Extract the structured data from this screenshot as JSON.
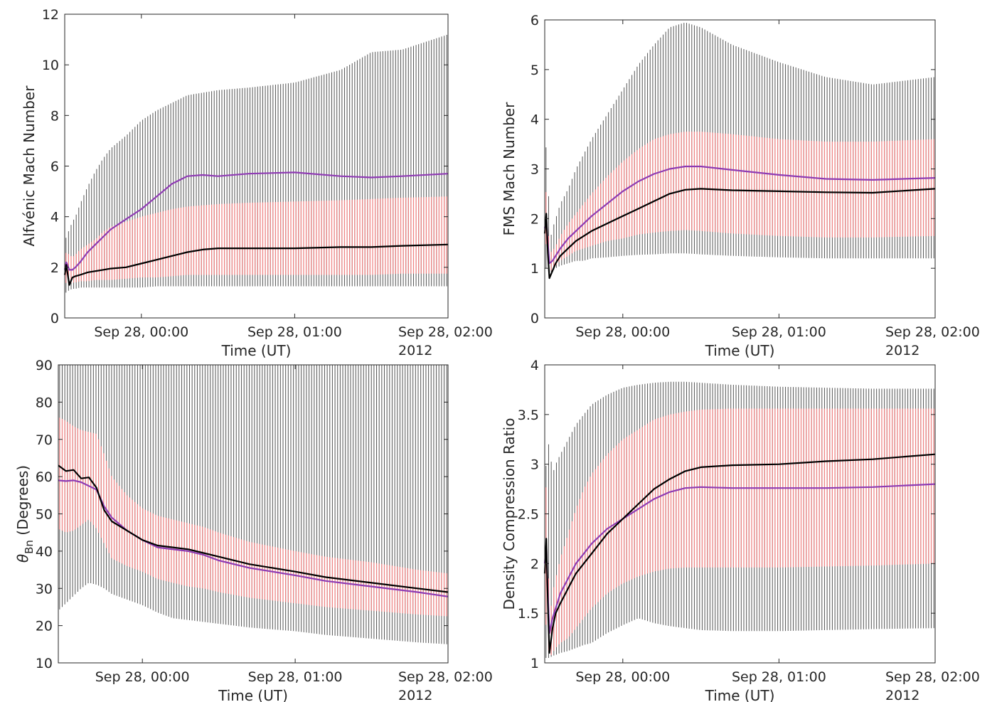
{
  "chart_data": [
    {
      "type": "line",
      "ylabel": "Alfvénic Mach Number",
      "ylabel_sub": "",
      "xlabel": "Time (UT)",
      "ylim": [
        0,
        12
      ],
      "yticks": [
        "0",
        "2",
        "4",
        "6",
        "8",
        "10",
        "12"
      ],
      "xlim": [
        -0.5,
        2.0
      ],
      "xticks": [
        "Sep 28, 00:00",
        "Sep 28, 01:00",
        "Sep 28, 02:00"
      ],
      "x_secondary_label": "2012",
      "x_hours": [
        -0.5,
        -0.49,
        -0.47,
        -0.45,
        -0.43,
        -0.4,
        -0.35,
        -0.3,
        -0.25,
        -0.2,
        -0.1,
        0.0,
        0.1,
        0.2,
        0.3,
        0.4,
        0.5,
        0.7,
        1.0,
        1.3,
        1.5,
        1.7,
        2.0
      ],
      "series": [
        {
          "role": "median",
          "color": "#000000",
          "values": [
            1.7,
            2.1,
            1.3,
            1.6,
            1.65,
            1.7,
            1.8,
            1.85,
            1.9,
            1.95,
            2.0,
            2.15,
            2.3,
            2.45,
            2.6,
            2.7,
            2.75,
            2.75,
            2.75,
            2.8,
            2.8,
            2.85,
            2.9
          ]
        },
        {
          "role": "mean",
          "color": "#8e3bb3",
          "values": [
            1.9,
            2.2,
            1.9,
            1.9,
            2.0,
            2.2,
            2.6,
            2.9,
            3.2,
            3.5,
            3.9,
            4.3,
            4.8,
            5.3,
            5.6,
            5.65,
            5.6,
            5.7,
            5.75,
            5.6,
            5.55,
            5.6,
            5.7
          ]
        },
        {
          "role": "error-outer",
          "color": "#555555",
          "low": [
            1.0,
            1.0,
            1.1,
            1.15,
            1.15,
            1.2,
            1.2,
            1.2,
            1.2,
            1.2,
            1.2,
            1.2,
            1.25,
            1.25,
            1.25,
            1.25,
            1.25,
            1.25,
            1.25,
            1.25,
            1.25,
            1.25,
            1.25
          ],
          "high": [
            3.0,
            3.2,
            3.5,
            3.8,
            4.0,
            4.5,
            5.2,
            5.8,
            6.3,
            6.7,
            7.2,
            7.8,
            8.2,
            8.5,
            8.8,
            8.9,
            9.0,
            9.1,
            9.3,
            9.8,
            10.5,
            10.6,
            11.2
          ]
        },
        {
          "role": "error-inner",
          "color": "#f08080",
          "low": [
            1.3,
            1.4,
            1.35,
            1.4,
            1.4,
            1.45,
            1.45,
            1.5,
            1.5,
            1.5,
            1.55,
            1.6,
            1.6,
            1.65,
            1.7,
            1.7,
            1.7,
            1.7,
            1.7,
            1.7,
            1.7,
            1.75,
            1.75
          ],
          "high": [
            2.4,
            2.6,
            2.5,
            2.4,
            2.5,
            2.7,
            2.9,
            3.1,
            3.4,
            3.6,
            3.8,
            4.0,
            4.15,
            4.3,
            4.4,
            4.45,
            4.5,
            4.55,
            4.6,
            4.65,
            4.7,
            4.75,
            4.8
          ]
        }
      ]
    },
    {
      "type": "line",
      "ylabel": "FMS Mach Number",
      "ylabel_sub": "",
      "xlabel": "Time (UT)",
      "ylim": [
        0,
        6
      ],
      "yticks": [
        "0",
        "1",
        "2",
        "3",
        "4",
        "5",
        "6"
      ],
      "xlim": [
        -0.5,
        2.0
      ],
      "xticks": [
        "Sep 28, 00:00",
        "Sep 28, 01:00",
        "Sep 28, 02:00"
      ],
      "x_secondary_label": "2012",
      "x_hours": [
        -0.5,
        -0.49,
        -0.48,
        -0.47,
        -0.45,
        -0.43,
        -0.4,
        -0.35,
        -0.3,
        -0.25,
        -0.2,
        -0.1,
        0.0,
        0.1,
        0.2,
        0.3,
        0.4,
        0.5,
        0.7,
        1.0,
        1.3,
        1.6,
        2.0
      ],
      "series": [
        {
          "role": "median",
          "color": "#000000",
          "values": [
            1.7,
            2.1,
            1.3,
            0.8,
            0.95,
            1.1,
            1.25,
            1.4,
            1.55,
            1.65,
            1.75,
            1.9,
            2.05,
            2.2,
            2.35,
            2.5,
            2.58,
            2.6,
            2.57,
            2.55,
            2.53,
            2.52,
            2.6
          ]
        },
        {
          "role": "mean",
          "color": "#8e3bb3",
          "values": [
            1.8,
            2.0,
            1.5,
            1.1,
            1.15,
            1.25,
            1.4,
            1.6,
            1.75,
            1.9,
            2.05,
            2.3,
            2.55,
            2.75,
            2.9,
            3.0,
            3.05,
            3.05,
            2.98,
            2.88,
            2.8,
            2.78,
            2.82
          ]
        },
        {
          "role": "error-outer",
          "color": "#555555",
          "low": [
            1.0,
            1.0,
            0.95,
            0.9,
            0.95,
            1.0,
            1.05,
            1.1,
            1.15,
            1.15,
            1.2,
            1.22,
            1.25,
            1.27,
            1.28,
            1.3,
            1.3,
            1.28,
            1.25,
            1.22,
            1.2,
            1.2,
            1.2
          ],
          "high": [
            2.6,
            3.6,
            3.4,
            1.5,
            1.8,
            2.0,
            2.3,
            2.6,
            3.0,
            3.3,
            3.6,
            4.1,
            4.6,
            5.1,
            5.5,
            5.85,
            5.95,
            5.85,
            5.5,
            5.15,
            4.85,
            4.7,
            4.85
          ]
        },
        {
          "role": "error-inner",
          "color": "#f08080",
          "low": [
            1.4,
            1.5,
            1.2,
            0.9,
            1.0,
            1.05,
            1.15,
            1.25,
            1.35,
            1.4,
            1.45,
            1.55,
            1.6,
            1.68,
            1.72,
            1.75,
            1.77,
            1.75,
            1.7,
            1.65,
            1.62,
            1.62,
            1.65
          ],
          "high": [
            2.2,
            2.6,
            2.0,
            1.3,
            1.35,
            1.45,
            1.65,
            1.9,
            2.1,
            2.3,
            2.5,
            2.85,
            3.15,
            3.4,
            3.6,
            3.7,
            3.75,
            3.75,
            3.7,
            3.6,
            3.55,
            3.55,
            3.6
          ]
        }
      ]
    },
    {
      "type": "line",
      "ylabel": "θ",
      "ylabel_sub": "Bn",
      "ylabel_suffix": " (Degrees)",
      "xlabel": "Time (UT)",
      "ylim": [
        10,
        90
      ],
      "yticks": [
        "10",
        "20",
        "30",
        "40",
        "50",
        "60",
        "70",
        "80",
        "90"
      ],
      "xlim": [
        -0.55,
        2.0
      ],
      "xticks": [
        "Sep 28, 00:00",
        "Sep 28, 01:00",
        "Sep 28, 02:00"
      ],
      "x_secondary_label": "2012",
      "x_hours": [
        -0.55,
        -0.5,
        -0.45,
        -0.4,
        -0.35,
        -0.3,
        -0.25,
        -0.2,
        -0.1,
        0.0,
        0.1,
        0.2,
        0.3,
        0.4,
        0.5,
        0.7,
        1.0,
        1.2,
        1.5,
        1.8,
        2.0
      ],
      "series": [
        {
          "role": "median",
          "color": "#000000",
          "values": [
            63.0,
            61.5,
            61.8,
            59.5,
            59.8,
            57.0,
            51.0,
            48.0,
            45.5,
            43.0,
            41.5,
            41.0,
            40.5,
            39.5,
            38.5,
            36.5,
            34.5,
            33.0,
            31.5,
            30.0,
            29.0
          ]
        },
        {
          "role": "mean",
          "color": "#8e3bb3",
          "values": [
            59.0,
            58.8,
            59.0,
            58.5,
            57.5,
            56.5,
            52.0,
            49.0,
            45.5,
            43.0,
            41.0,
            40.5,
            40.0,
            39.0,
            37.5,
            35.5,
            33.5,
            32.0,
            30.5,
            29.0,
            27.8
          ]
        },
        {
          "role": "error-outer",
          "color": "#555555",
          "low": [
            24.0,
            26.0,
            28.0,
            30.0,
            31.5,
            31.0,
            30.0,
            28.5,
            27.0,
            25.5,
            23.5,
            22.0,
            21.5,
            21.0,
            20.5,
            19.5,
            18.5,
            17.5,
            16.5,
            15.5,
            15.0
          ]
        },
        {
          "role": "error-inner",
          "color": "#f08080",
          "low": [
            46.0,
            45.0,
            45.5,
            47.0,
            48.5,
            46.0,
            42.0,
            38.0,
            36.0,
            34.5,
            32.5,
            31.5,
            30.5,
            30.0,
            29.0,
            27.5,
            26.0,
            25.0,
            24.0,
            23.0,
            22.5
          ],
          "high": [
            76.0,
            75.0,
            73.5,
            72.5,
            72.0,
            71.5,
            66.0,
            60.0,
            55.0,
            51.5,
            49.5,
            48.5,
            47.5,
            46.5,
            45.0,
            42.5,
            40.0,
            38.5,
            37.0,
            35.0,
            34.0
          ]
        }
      ]
    },
    {
      "type": "line",
      "ylabel": "Density Compression Ratio",
      "ylabel_sub": "",
      "xlabel": "Time (UT)",
      "ylim": [
        1,
        4
      ],
      "yticks": [
        "1",
        "1.5",
        "2",
        "2.5",
        "3",
        "3.5",
        "4"
      ],
      "xlim": [
        -0.5,
        2.0
      ],
      "xticks": [
        "Sep 28, 00:00",
        "Sep 28, 01:00",
        "Sep 28, 02:00"
      ],
      "x_secondary_label": "2012",
      "x_hours": [
        -0.5,
        -0.49,
        -0.48,
        -0.47,
        -0.45,
        -0.43,
        -0.4,
        -0.35,
        -0.3,
        -0.25,
        -0.2,
        -0.1,
        0.0,
        0.1,
        0.2,
        0.3,
        0.4,
        0.5,
        0.7,
        1.0,
        1.3,
        1.6,
        2.0
      ],
      "series": [
        {
          "role": "median",
          "color": "#000000",
          "values": [
            1.9,
            2.25,
            1.6,
            1.1,
            1.35,
            1.5,
            1.6,
            1.75,
            1.9,
            2.0,
            2.1,
            2.3,
            2.45,
            2.6,
            2.75,
            2.85,
            2.93,
            2.97,
            2.99,
            3.0,
            3.03,
            3.05,
            3.1
          ]
        },
        {
          "role": "mean",
          "color": "#8e3bb3",
          "values": [
            2.0,
            2.2,
            1.7,
            1.3,
            1.45,
            1.55,
            1.7,
            1.85,
            2.0,
            2.1,
            2.2,
            2.35,
            2.45,
            2.55,
            2.65,
            2.72,
            2.76,
            2.77,
            2.76,
            2.76,
            2.76,
            2.77,
            2.8
          ]
        },
        {
          "role": "error-outer",
          "color": "#555555",
          "low": [
            1.05,
            1.05,
            1.05,
            1.05,
            1.07,
            1.08,
            1.1,
            1.12,
            1.15,
            1.18,
            1.2,
            1.3,
            1.38,
            1.45,
            1.4,
            1.37,
            1.35,
            1.33,
            1.32,
            1.32,
            1.33,
            1.34,
            1.35
          ],
          "high": [
            2.9,
            3.0,
            3.2,
            3.2,
            2.9,
            3.0,
            3.1,
            3.25,
            3.4,
            3.5,
            3.6,
            3.7,
            3.77,
            3.8,
            3.82,
            3.83,
            3.83,
            3.82,
            3.8,
            3.78,
            3.77,
            3.76,
            3.76
          ]
        },
        {
          "role": "error-inner",
          "color": "#f08080",
          "low": [
            1.3,
            1.4,
            1.2,
            1.05,
            1.1,
            1.15,
            1.2,
            1.25,
            1.35,
            1.45,
            1.55,
            1.7,
            1.8,
            1.87,
            1.92,
            1.95,
            1.96,
            1.96,
            1.96,
            1.96,
            1.97,
            1.98,
            2.0
          ],
          "high": [
            2.6,
            2.8,
            2.3,
            1.4,
            1.7,
            1.85,
            2.05,
            2.3,
            2.55,
            2.75,
            2.9,
            3.1,
            3.25,
            3.35,
            3.45,
            3.5,
            3.53,
            3.55,
            3.56,
            3.56,
            3.56,
            3.56,
            3.56
          ]
        }
      ]
    }
  ]
}
